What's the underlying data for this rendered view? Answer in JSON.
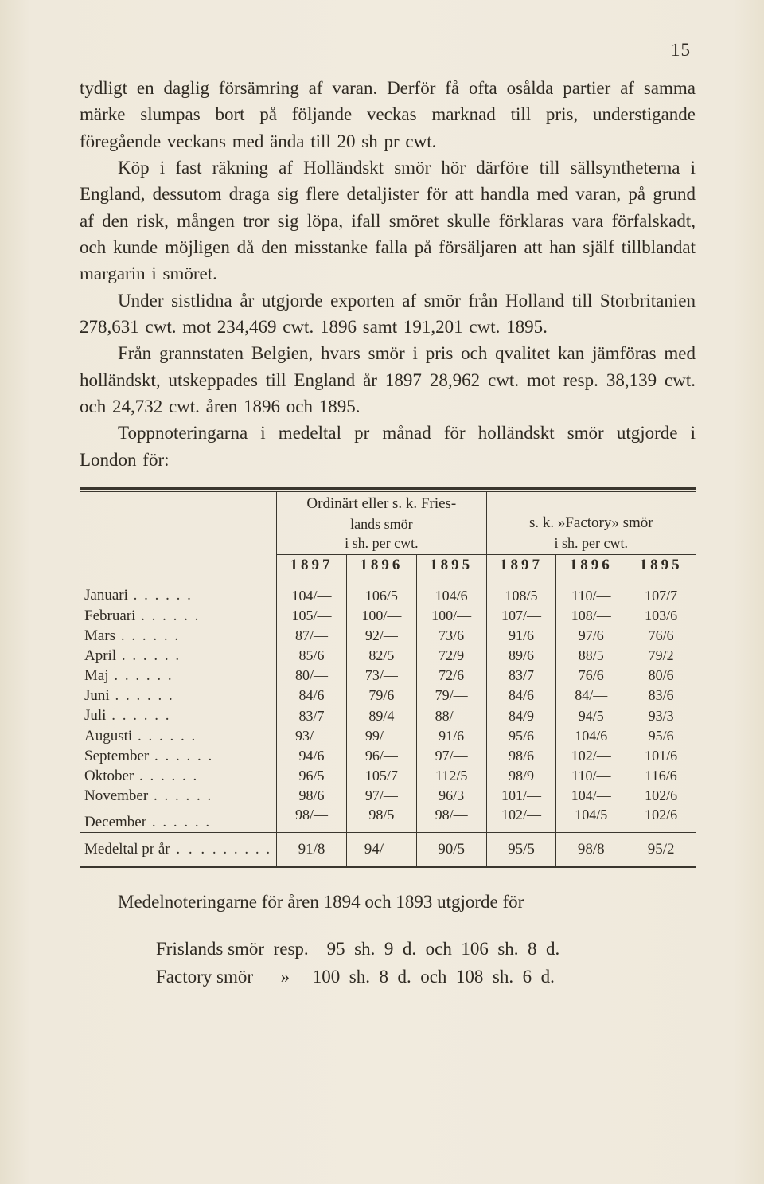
{
  "page_number": "15",
  "paragraphs": [
    "tydligt en daglig försämring af varan. Derför få ofta osålda partier af samma märke slumpas bort på följande veckas marknad till pris, understigande föregående veckans med ända till 20 sh pr cwt.",
    "Köp i fast räkning af Holländskt smör hör därföre till sällsyntheterna i England, dessutom draga sig flere detaljister för att handla med varan, på grund af den risk, mången tror sig löpa, ifall smöret skulle förklaras vara förfalskadt, och kunde möjligen då den misstanke falla på försäljaren att han själf tillblandat margarin i smöret.",
    "Under sistlidna år utgjorde exporten af smör från Holland till Storbritanien 278,631 cwt. mot 234,469 cwt. 1896 samt 191,201 cwt. 1895.",
    "Från grannstaten Belgien, hvars smör i pris och qvalitet kan jämföras med holländskt, utskeppades till England år 1897 28,962 cwt. mot resp. 38,139 cwt. och 24,732 cwt. åren 1896 och 1895.",
    "Toppnoteringarna i medeltal pr månad för holländskt smör utgjorde i London för:"
  ],
  "table": {
    "group_headers": [
      {
        "line1": "Ordinärt eller s. k. Fries-",
        "line2": "lands smör",
        "line3": "i sh. per cwt."
      },
      {
        "line1": "s. k. »Factory» smör",
        "line2": "",
        "line3": "i sh. per cwt."
      }
    ],
    "years": [
      "1897",
      "1896",
      "1895",
      "1897",
      "1896",
      "1895"
    ],
    "rows": [
      {
        "month": "Januari",
        "v": [
          "104/—",
          "106/5",
          "104/6",
          "108/5",
          "110/—",
          "107/7"
        ]
      },
      {
        "month": "Februari",
        "v": [
          "105/—",
          "100/—",
          "100/—",
          "107/—",
          "108/—",
          "103/6"
        ]
      },
      {
        "month": "Mars",
        "v": [
          "87/—",
          "92/—",
          "73/6",
          "91/6",
          "97/6",
          "76/6"
        ]
      },
      {
        "month": "April",
        "v": [
          "85/6",
          "82/5",
          "72/9",
          "89/6",
          "88/5",
          "79/2"
        ]
      },
      {
        "month": "Maj",
        "v": [
          "80/—",
          "73/—",
          "72/6",
          "83/7",
          "76/6",
          "80/6"
        ]
      },
      {
        "month": "Juni",
        "v": [
          "84/6",
          "79/6",
          "79/—",
          "84/6",
          "84/—",
          "83/6"
        ]
      },
      {
        "month": "Juli",
        "v": [
          "83/7",
          "89/4",
          "88/—",
          "84/9",
          "94/5",
          "93/3"
        ]
      },
      {
        "month": "Augusti",
        "v": [
          "93/—",
          "99/—",
          "91/6",
          "95/6",
          "104/6",
          "95/6"
        ]
      },
      {
        "month": "September",
        "v": [
          "94/6",
          "96/—",
          "97/—",
          "98/6",
          "102/—",
          "101/6"
        ]
      },
      {
        "month": "Oktober",
        "v": [
          "96/5",
          "105/7",
          "112/5",
          "98/9",
          "110/—",
          "116/6"
        ]
      },
      {
        "month": "November",
        "v": [
          "98/6",
          "97/—",
          "96/3",
          "101/—",
          "104/—",
          "102/6"
        ]
      },
      {
        "month": "December",
        "v": [
          "98/—",
          "98/5",
          "98/—",
          "102/—",
          "104/5",
          "102/6"
        ]
      }
    ],
    "avg_label": "Medeltal pr år",
    "avg": [
      "91/8",
      "94/—",
      "90/5",
      "95/5",
      "98/8",
      "95/2"
    ]
  },
  "below_para": "Medelnoteringarne för åren 1894 och 1893 utgjorde för",
  "listing": [
    "Frislands smör  resp.    95  sh.  9  d.  och  106  sh.  8  d.",
    "Factory smör      »     100  sh.  8  d.  och  108  sh.  6  d."
  ]
}
